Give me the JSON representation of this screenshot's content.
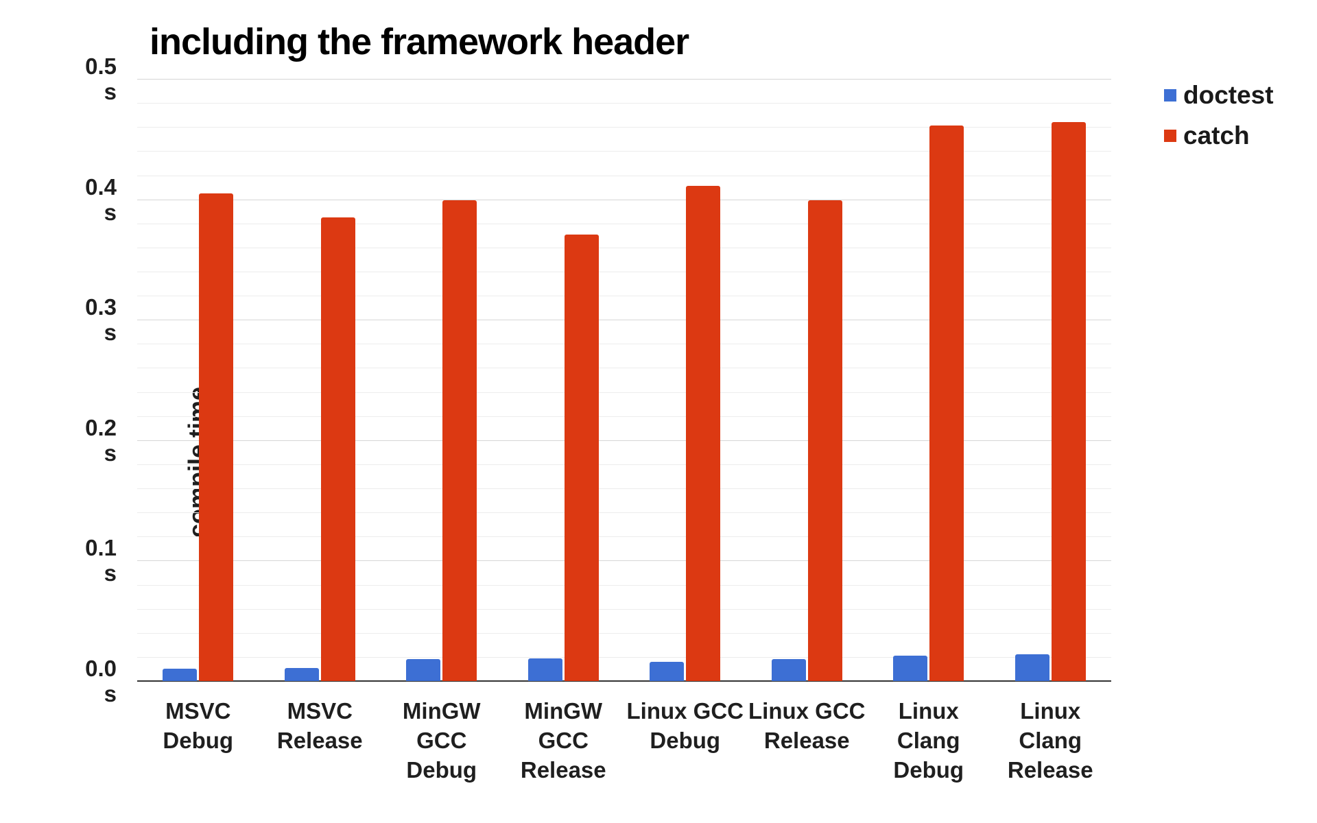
{
  "title": "including the framework header",
  "legend": {
    "position": "right",
    "items": [
      {
        "label": "doctest",
        "color": "#3d6fd4"
      },
      {
        "label": "catch",
        "color": "#dc3912"
      }
    ]
  },
  "chart_data": {
    "type": "bar",
    "title": "including the framework header",
    "xlabel": "",
    "ylabel": "compile time",
    "unit": "s",
    "categories": [
      "MSVC\nDebug",
      "MSVC\nRelease",
      "MinGW GCC\nDebug",
      "MinGW GCC\nRelease",
      "Linux GCC\nDebug",
      "Linux GCC\nRelease",
      "Linux Clang\nDebug",
      "Linux Clang\nRelease"
    ],
    "series": [
      {
        "name": "doctest",
        "color": "#3d6fd4",
        "values": [
          0.01,
          0.011,
          0.018,
          0.019,
          0.016,
          0.018,
          0.021,
          0.022
        ]
      },
      {
        "name": "catch",
        "color": "#dc3912",
        "values": [
          0.405,
          0.385,
          0.399,
          0.371,
          0.411,
          0.399,
          0.461,
          0.464
        ]
      }
    ],
    "ylim": [
      0,
      0.5
    ],
    "yticks": [
      "0.0",
      "0.1",
      "0.2",
      "0.3",
      "0.4",
      "0.5"
    ],
    "ytick_unit": "s",
    "grid": {
      "major_step": 0.1,
      "minor_step": 0.02,
      "visible": true
    },
    "legend_position": "right"
  }
}
